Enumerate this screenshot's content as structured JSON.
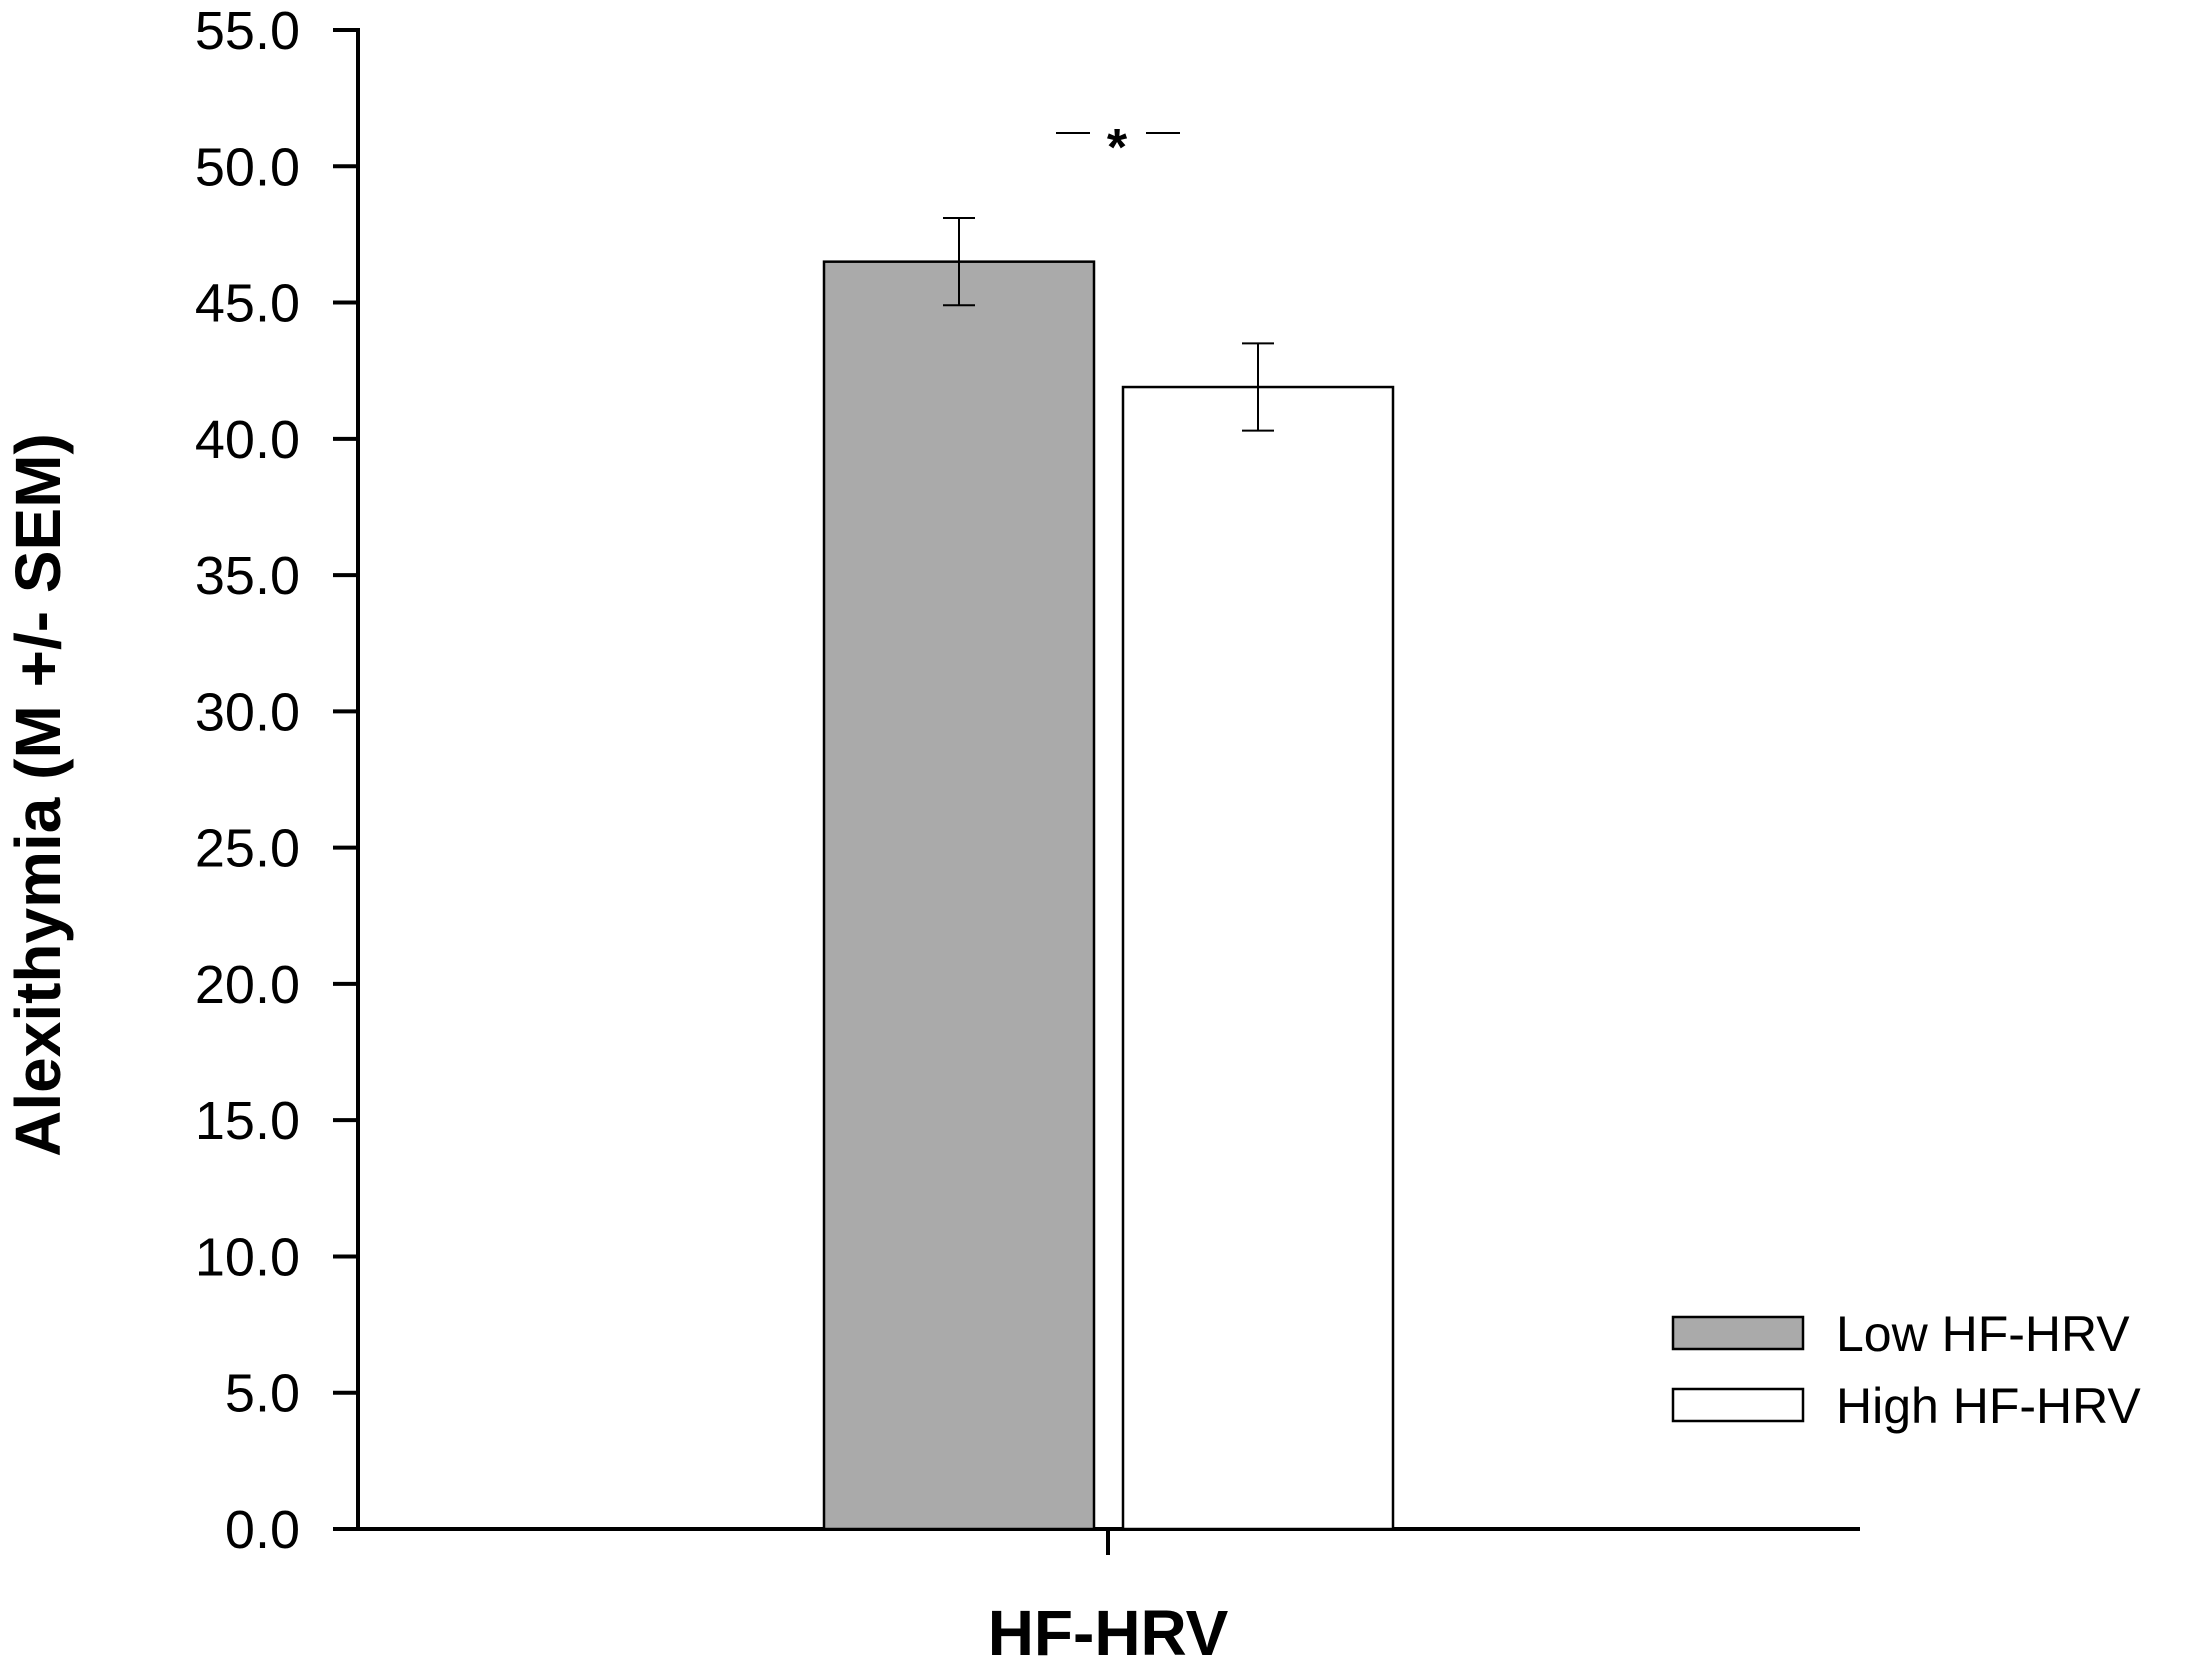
{
  "chart_data": {
    "type": "bar",
    "categories": [
      "HF-HRV"
    ],
    "series": [
      {
        "name": "Low HF-HRV",
        "values": [
          46.5
        ],
        "error": [
          1.6
        ],
        "color": "#aaaaaa"
      },
      {
        "name": "High HF-HRV",
        "values": [
          41.9
        ],
        "error": [
          1.6
        ],
        "color": "#ffffff"
      }
    ],
    "title": "",
    "xlabel": "HF-HRV",
    "ylabel": "Alexithymia (M +/- SEM)",
    "ylim": [
      0,
      55
    ],
    "yticks": [
      "0.0",
      "5.0",
      "10.0",
      "15.0",
      "20.0",
      "25.0",
      "30.0",
      "35.0",
      "40.0",
      "45.0",
      "50.0",
      "55.0"
    ],
    "annotations": [
      {
        "text": "*",
        "between": [
          "Low HF-HRV",
          "High HF-HRV"
        ]
      }
    ],
    "legend": {
      "position": "bottom-right",
      "entries": [
        "Low HF-HRV",
        "High HF-HRV"
      ]
    },
    "grid": false
  }
}
